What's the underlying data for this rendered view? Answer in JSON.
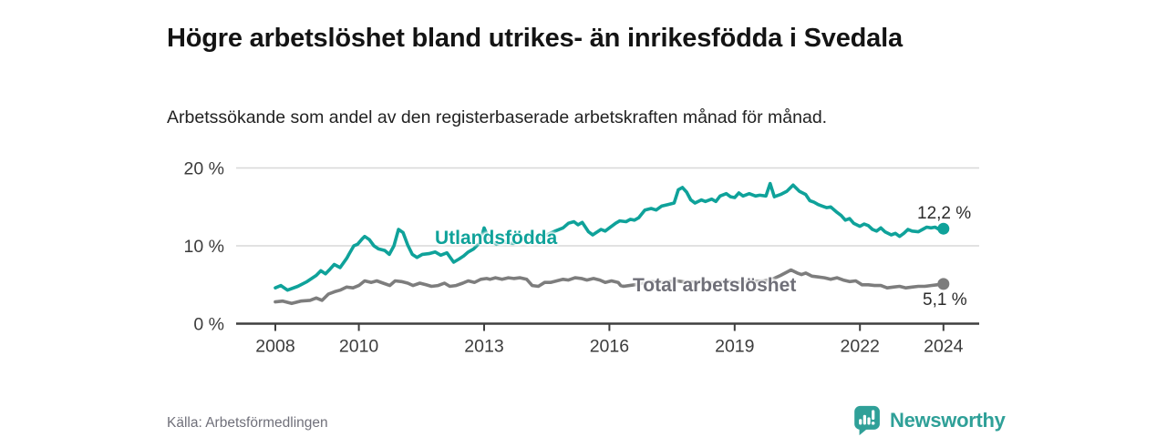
{
  "header": {
    "title": "Högre arbetslöshet bland utrikes- än inrikesfödda i Svedala",
    "subtitle": "Arbetssökande som andel av den registerbaserade arbetskraften månad för månad."
  },
  "chart_data": {
    "type": "line",
    "title": "Högre arbetslöshet bland utrikes- än inrikesfödda i Svedala",
    "unit": "%",
    "grid": "horizontal-gridlines",
    "legend_position": "inline-labels-on-lines",
    "x_axis": {
      "ticks": [
        2008,
        2010,
        2013,
        2016,
        2019,
        2022,
        2024
      ],
      "tick_labels": [
        "2008",
        "2010",
        "2013",
        "2016",
        "2019",
        "2022",
        "2024"
      ]
    },
    "y_axis": {
      "ticks": [
        0,
        10,
        20
      ],
      "tick_labels": [
        "0 %",
        "10 %",
        "20 %"
      ],
      "ylim": [
        0,
        20
      ]
    },
    "xlim": [
      2007,
      2024.9
    ],
    "series": [
      {
        "name": "Utlandsfödda",
        "color": "#0fa29a",
        "end_label": "12,2 %",
        "last_value": "12,2 %",
        "points": [
          [
            2008.0,
            4.6
          ],
          [
            2008.13,
            4.9
          ],
          [
            2008.29,
            4.3
          ],
          [
            2008.54,
            4.8
          ],
          [
            2008.76,
            5.4
          ],
          [
            2008.98,
            6.2
          ],
          [
            2009.09,
            6.8
          ],
          [
            2009.2,
            6.4
          ],
          [
            2009.31,
            7.0
          ],
          [
            2009.41,
            7.6
          ],
          [
            2009.55,
            7.2
          ],
          [
            2009.71,
            8.4
          ],
          [
            2009.77,
            9.0
          ],
          [
            2009.88,
            10.0
          ],
          [
            2009.97,
            10.2
          ],
          [
            2010.08,
            10.9
          ],
          [
            2010.14,
            11.2
          ],
          [
            2010.25,
            10.8
          ],
          [
            2010.36,
            10.0
          ],
          [
            2010.47,
            9.6
          ],
          [
            2010.62,
            9.4
          ],
          [
            2010.73,
            8.9
          ],
          [
            2010.84,
            10.0
          ],
          [
            2010.95,
            12.1
          ],
          [
            2011.06,
            11.7
          ],
          [
            2011.17,
            10.1
          ],
          [
            2011.28,
            8.9
          ],
          [
            2011.39,
            8.5
          ],
          [
            2011.52,
            8.9
          ],
          [
            2011.68,
            9.0
          ],
          [
            2011.83,
            9.2
          ],
          [
            2011.96,
            8.8
          ],
          [
            2012.11,
            9.1
          ],
          [
            2012.27,
            7.9
          ],
          [
            2012.4,
            8.3
          ],
          [
            2012.51,
            8.7
          ],
          [
            2012.62,
            9.2
          ],
          [
            2012.75,
            9.6
          ],
          [
            2012.9,
            10.4
          ],
          [
            2013.0,
            12.3
          ],
          [
            2013.12,
            10.8
          ],
          [
            2013.3,
            10.2
          ],
          [
            2013.5,
            10.5
          ],
          [
            2013.7,
            10.3
          ],
          [
            2013.9,
            10.8
          ],
          [
            2014.1,
            11.1
          ],
          [
            2014.3,
            10.9
          ],
          [
            2014.5,
            11.4
          ],
          [
            2014.7,
            11.9
          ],
          [
            2014.89,
            12.3
          ],
          [
            2015.02,
            12.9
          ],
          [
            2015.15,
            13.1
          ],
          [
            2015.25,
            12.7
          ],
          [
            2015.35,
            13.0
          ],
          [
            2015.5,
            11.8
          ],
          [
            2015.6,
            11.4
          ],
          [
            2015.8,
            12.1
          ],
          [
            2015.9,
            11.9
          ],
          [
            2016.0,
            12.3
          ],
          [
            2016.15,
            12.9
          ],
          [
            2016.25,
            13.2
          ],
          [
            2016.4,
            13.1
          ],
          [
            2016.5,
            13.4
          ],
          [
            2016.6,
            13.3
          ],
          [
            2016.7,
            13.6
          ],
          [
            2016.85,
            14.6
          ],
          [
            2017.0,
            14.8
          ],
          [
            2017.12,
            14.6
          ],
          [
            2017.25,
            15.1
          ],
          [
            2017.4,
            15.3
          ],
          [
            2017.55,
            15.5
          ],
          [
            2017.65,
            17.2
          ],
          [
            2017.75,
            17.5
          ],
          [
            2017.85,
            16.9
          ],
          [
            2017.95,
            15.9
          ],
          [
            2018.05,
            15.5
          ],
          [
            2018.2,
            15.9
          ],
          [
            2018.3,
            15.7
          ],
          [
            2018.45,
            16.0
          ],
          [
            2018.55,
            15.7
          ],
          [
            2018.65,
            16.4
          ],
          [
            2018.8,
            16.7
          ],
          [
            2018.9,
            16.3
          ],
          [
            2019.0,
            16.2
          ],
          [
            2019.1,
            16.8
          ],
          [
            2019.2,
            16.4
          ],
          [
            2019.35,
            16.7
          ],
          [
            2019.5,
            16.4
          ],
          [
            2019.6,
            16.5
          ],
          [
            2019.75,
            16.4
          ],
          [
            2019.85,
            18.0
          ],
          [
            2019.95,
            16.3
          ],
          [
            2020.1,
            16.6
          ],
          [
            2020.25,
            17.0
          ],
          [
            2020.4,
            17.8
          ],
          [
            2020.55,
            17.0
          ],
          [
            2020.7,
            16.6
          ],
          [
            2020.8,
            15.8
          ],
          [
            2020.9,
            15.6
          ],
          [
            2021.0,
            15.3
          ],
          [
            2021.1,
            15.1
          ],
          [
            2021.2,
            14.9
          ],
          [
            2021.3,
            15.0
          ],
          [
            2021.45,
            14.3
          ],
          [
            2021.55,
            13.9
          ],
          [
            2021.65,
            13.3
          ],
          [
            2021.75,
            13.5
          ],
          [
            2021.85,
            12.9
          ],
          [
            2022.0,
            12.5
          ],
          [
            2022.1,
            12.8
          ],
          [
            2022.2,
            12.6
          ],
          [
            2022.3,
            12.1
          ],
          [
            2022.4,
            11.9
          ],
          [
            2022.5,
            12.3
          ],
          [
            2022.6,
            11.8
          ],
          [
            2022.75,
            11.4
          ],
          [
            2022.85,
            11.6
          ],
          [
            2022.95,
            11.2
          ],
          [
            2023.05,
            11.6
          ],
          [
            2023.15,
            12.1
          ],
          [
            2023.25,
            11.9
          ],
          [
            2023.4,
            11.8
          ],
          [
            2023.5,
            12.1
          ],
          [
            2023.6,
            12.4
          ],
          [
            2023.7,
            12.3
          ],
          [
            2023.8,
            12.4
          ],
          [
            2023.9,
            12.1
          ],
          [
            2024.0,
            12.2
          ]
        ]
      },
      {
        "name": "Total arbetslöshet",
        "color": "#7d7d7d",
        "end_label": "5,1 %",
        "last_value": "5,1 %",
        "points": [
          [
            2008.0,
            2.8
          ],
          [
            2008.18,
            2.9
          ],
          [
            2008.39,
            2.6
          ],
          [
            2008.61,
            2.9
          ],
          [
            2008.83,
            3.0
          ],
          [
            2008.98,
            3.3
          ],
          [
            2009.12,
            3.0
          ],
          [
            2009.27,
            3.8
          ],
          [
            2009.42,
            4.1
          ],
          [
            2009.55,
            4.3
          ],
          [
            2009.71,
            4.7
          ],
          [
            2009.86,
            4.6
          ],
          [
            2010.0,
            4.9
          ],
          [
            2010.14,
            5.5
          ],
          [
            2010.3,
            5.3
          ],
          [
            2010.43,
            5.5
          ],
          [
            2010.58,
            5.2
          ],
          [
            2010.74,
            4.9
          ],
          [
            2010.87,
            5.5
          ],
          [
            2011.02,
            5.4
          ],
          [
            2011.17,
            5.2
          ],
          [
            2011.3,
            4.9
          ],
          [
            2011.46,
            5.2
          ],
          [
            2011.61,
            5.0
          ],
          [
            2011.74,
            4.8
          ],
          [
            2011.9,
            4.9
          ],
          [
            2012.05,
            5.2
          ],
          [
            2012.18,
            4.8
          ],
          [
            2012.33,
            4.9
          ],
          [
            2012.49,
            5.2
          ],
          [
            2012.62,
            5.5
          ],
          [
            2012.77,
            5.3
          ],
          [
            2012.92,
            5.7
          ],
          [
            2013.06,
            5.8
          ],
          [
            2013.14,
            5.7
          ],
          [
            2013.27,
            5.9
          ],
          [
            2013.43,
            5.7
          ],
          [
            2013.58,
            5.9
          ],
          [
            2013.71,
            5.8
          ],
          [
            2013.86,
            5.9
          ],
          [
            2014.02,
            5.7
          ],
          [
            2014.15,
            4.9
          ],
          [
            2014.3,
            4.8
          ],
          [
            2014.45,
            5.3
          ],
          [
            2014.59,
            5.3
          ],
          [
            2014.74,
            5.5
          ],
          [
            2014.89,
            5.7
          ],
          [
            2015.02,
            5.6
          ],
          [
            2015.18,
            5.9
          ],
          [
            2015.33,
            5.8
          ],
          [
            2015.46,
            5.6
          ],
          [
            2015.62,
            5.8
          ],
          [
            2015.77,
            5.6
          ],
          [
            2015.9,
            5.3
          ],
          [
            2016.05,
            5.5
          ],
          [
            2016.21,
            5.3
          ],
          [
            2016.27,
            4.9
          ],
          [
            2016.34,
            4.8
          ],
          [
            2016.6,
            5.0
          ],
          [
            2016.8,
            5.2
          ],
          [
            2017.0,
            5.4
          ],
          [
            2017.3,
            5.3
          ],
          [
            2017.6,
            5.5
          ],
          [
            2017.9,
            5.3
          ],
          [
            2018.2,
            5.4
          ],
          [
            2018.5,
            5.2
          ],
          [
            2018.8,
            5.4
          ],
          [
            2019.1,
            5.3
          ],
          [
            2019.4,
            5.4
          ],
          [
            2019.7,
            5.5
          ],
          [
            2019.9,
            5.7
          ],
          [
            2020.1,
            6.2
          ],
          [
            2020.35,
            6.9
          ],
          [
            2020.5,
            6.5
          ],
          [
            2020.6,
            6.3
          ],
          [
            2020.7,
            6.5
          ],
          [
            2020.85,
            6.1
          ],
          [
            2021.0,
            6.0
          ],
          [
            2021.15,
            5.9
          ],
          [
            2021.3,
            5.7
          ],
          [
            2021.45,
            5.9
          ],
          [
            2021.6,
            5.6
          ],
          [
            2021.75,
            5.4
          ],
          [
            2021.9,
            5.5
          ],
          [
            2022.05,
            5.0
          ],
          [
            2022.2,
            5.0
          ],
          [
            2022.35,
            4.9
          ],
          [
            2022.5,
            4.9
          ],
          [
            2022.65,
            4.6
          ],
          [
            2022.8,
            4.7
          ],
          [
            2022.95,
            4.8
          ],
          [
            2023.1,
            4.6
          ],
          [
            2023.25,
            4.7
          ],
          [
            2023.4,
            4.8
          ],
          [
            2023.55,
            4.8
          ],
          [
            2023.7,
            4.9
          ],
          [
            2023.85,
            5.0
          ],
          [
            2024.0,
            5.1
          ]
        ]
      }
    ]
  },
  "footer": {
    "source": "Källa: Arbetsförmedlingen",
    "brand": "Newsworthy"
  },
  "icons": {
    "brand_logo": "bar-chart-speech-bubble-icon"
  },
  "colors": {
    "accent_teal": "#0fa29a",
    "series_gray": "#7d7d7d",
    "axis_text": "#3c3c3c",
    "gridline": "#d8d8d8",
    "axis_line": "#3f3f3f",
    "brand_teal": "#2fa098"
  }
}
